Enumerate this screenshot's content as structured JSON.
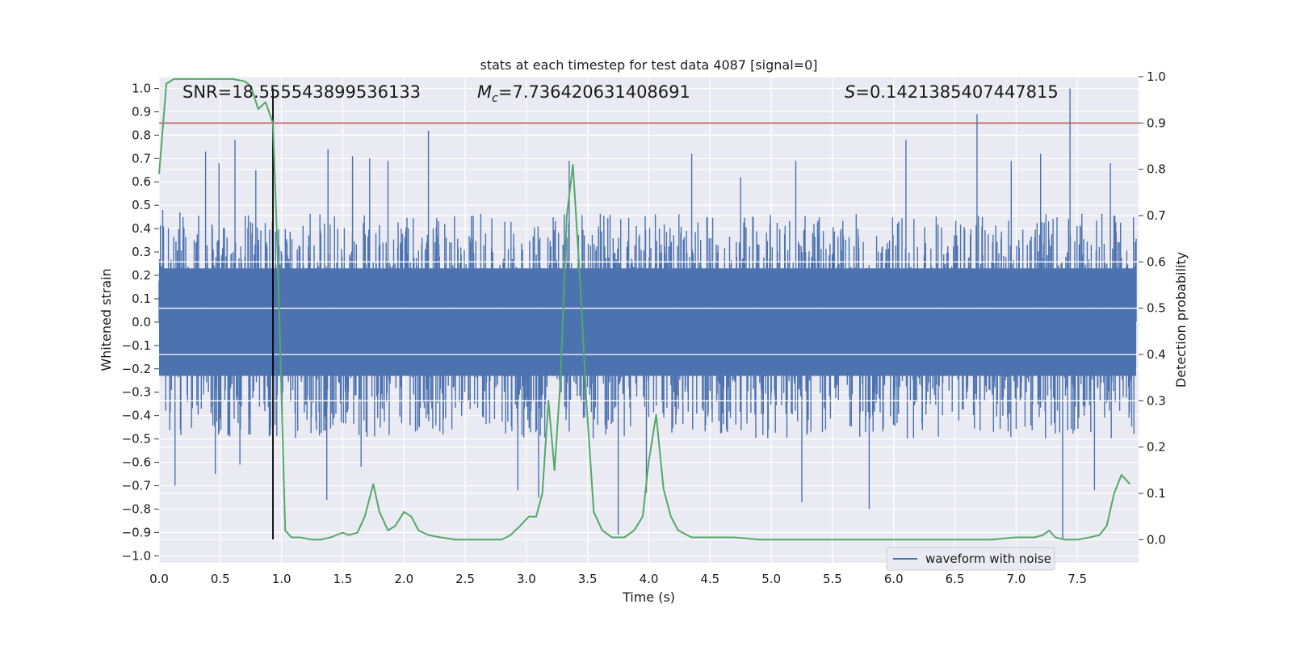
{
  "chart_data": {
    "type": "line",
    "title": "stats at each timestep for test data 4087 [signal=0]",
    "xlabel": "Time (s)",
    "ylabel": "Whitened strain",
    "y2label": "Detection probability",
    "xlim": [
      0.0,
      8.0
    ],
    "ylim": [
      -1.03,
      1.05
    ],
    "y2lim": [
      -0.05,
      1.0
    ],
    "xticks": [
      "0.0",
      "0.5",
      "1.0",
      "1.5",
      "2.0",
      "2.5",
      "3.0",
      "3.5",
      "4.0",
      "4.5",
      "5.0",
      "5.5",
      "6.0",
      "6.5",
      "7.0",
      "7.5"
    ],
    "yticks": [
      "1.0",
      "0.9",
      "0.8",
      "0.7",
      "0.6",
      "0.5",
      "0.4",
      "0.3",
      "0.2",
      "0.1",
      "0.0",
      "-0.1",
      "-0.2",
      "-0.3",
      "-0.4",
      "-0.5",
      "-0.6",
      "-0.7",
      "-0.8",
      "-0.9",
      "-1.0"
    ],
    "y2ticks": [
      "1.0",
      "0.9",
      "0.8",
      "0.7",
      "0.6",
      "0.5",
      "0.4",
      "0.3",
      "0.2",
      "0.1",
      "0.0"
    ],
    "annotations": {
      "snr": "SNR=18.555543899536133",
      "mc_symbol": "M",
      "mc_subscript": "c",
      "mc_value": "=7.736420631408691",
      "s_symbol": "S",
      "s_value": "=0.1421385407447815"
    },
    "legend": {
      "label": "waveform with noise",
      "location": "lower right"
    },
    "threshold_line": {
      "axis": "y2",
      "value": 0.9,
      "color": "#c44e52"
    },
    "marker_line": {
      "x": 0.93,
      "y_range": [
        -0.93,
        1.0
      ],
      "color": "#000000"
    },
    "waveform": {
      "name": "waveform with noise",
      "color": "#4c72b0",
      "x_range": [
        0.0,
        7.98
      ],
      "core_band": [
        -0.13,
        0.13
      ],
      "upper_envelope_typical": 0.42,
      "lower_envelope_typical": -0.45,
      "peaks": [
        {
          "x": 0.03,
          "y": 0.48
        },
        {
          "x": 0.17,
          "y": 0.47
        },
        {
          "x": 0.38,
          "y": 0.73
        },
        {
          "x": 0.49,
          "y": 0.68
        },
        {
          "x": 0.62,
          "y": 0.78
        },
        {
          "x": 0.79,
          "y": 0.65
        },
        {
          "x": 1.38,
          "y": 0.74
        },
        {
          "x": 1.58,
          "y": 0.71
        },
        {
          "x": 1.72,
          "y": 0.7
        },
        {
          "x": 1.87,
          "y": 0.69
        },
        {
          "x": 2.2,
          "y": 0.82
        },
        {
          "x": 3.35,
          "y": 0.69
        },
        {
          "x": 4.35,
          "y": 0.72
        },
        {
          "x": 4.75,
          "y": 0.62
        },
        {
          "x": 5.2,
          "y": 0.69
        },
        {
          "x": 6.1,
          "y": 0.78
        },
        {
          "x": 6.68,
          "y": 0.89
        },
        {
          "x": 6.96,
          "y": 0.69
        },
        {
          "x": 7.2,
          "y": 0.72
        },
        {
          "x": 7.44,
          "y": 1.0
        },
        {
          "x": 7.77,
          "y": 0.68
        }
      ],
      "troughs": [
        {
          "x": 0.13,
          "y": -0.7
        },
        {
          "x": 0.46,
          "y": -0.65
        },
        {
          "x": 0.66,
          "y": -0.61
        },
        {
          "x": 1.37,
          "y": -0.76
        },
        {
          "x": 1.65,
          "y": -0.62
        },
        {
          "x": 2.93,
          "y": -0.72
        },
        {
          "x": 3.1,
          "y": -0.75
        },
        {
          "x": 3.75,
          "y": -0.91
        },
        {
          "x": 3.98,
          "y": -0.73
        },
        {
          "x": 5.25,
          "y": -0.77
        },
        {
          "x": 5.8,
          "y": -0.8
        },
        {
          "x": 7.38,
          "y": -0.93
        },
        {
          "x": 7.64,
          "y": -0.72
        }
      ]
    },
    "series": [
      {
        "name": "detection probability",
        "axis": "y2",
        "color": "#55a868",
        "x": [
          0.0,
          0.06,
          0.12,
          0.2,
          0.3,
          0.45,
          0.6,
          0.7,
          0.75,
          0.81,
          0.87,
          0.93,
          0.97,
          1.03,
          1.08,
          1.15,
          1.25,
          1.32,
          1.4,
          1.45,
          1.5,
          1.55,
          1.62,
          1.68,
          1.75,
          1.8,
          1.87,
          1.93,
          2.0,
          2.06,
          2.12,
          2.2,
          2.3,
          2.42,
          2.6,
          2.8,
          2.87,
          2.95,
          3.02,
          3.08,
          3.13,
          3.18,
          3.23,
          3.28,
          3.33,
          3.38,
          3.44,
          3.49,
          3.55,
          3.62,
          3.7,
          3.8,
          3.88,
          3.95,
          4.0,
          4.06,
          4.12,
          4.18,
          4.24,
          4.35,
          4.5,
          4.7,
          4.9,
          5.2,
          5.6,
          6.0,
          6.4,
          6.8,
          7.0,
          7.08,
          7.15,
          7.22,
          7.27,
          7.32,
          7.4,
          7.5,
          7.6,
          7.68,
          7.74,
          7.8,
          7.86,
          7.93
        ],
        "values": [
          0.79,
          0.985,
          0.995,
          0.995,
          0.995,
          0.995,
          0.995,
          0.99,
          0.98,
          0.93,
          0.945,
          0.9,
          0.6,
          0.02,
          0.005,
          0.005,
          0.0,
          0.0,
          0.005,
          0.01,
          0.015,
          0.01,
          0.015,
          0.05,
          0.12,
          0.06,
          0.02,
          0.03,
          0.06,
          0.05,
          0.02,
          0.01,
          0.005,
          0.0,
          0.0,
          0.0,
          0.01,
          0.03,
          0.05,
          0.05,
          0.1,
          0.3,
          0.15,
          0.35,
          0.7,
          0.81,
          0.55,
          0.3,
          0.06,
          0.02,
          0.005,
          0.005,
          0.02,
          0.05,
          0.17,
          0.27,
          0.11,
          0.05,
          0.02,
          0.005,
          0.005,
          0.005,
          0.0,
          0.0,
          0.0,
          0.0,
          0.0,
          0.0,
          0.005,
          0.005,
          0.005,
          0.01,
          0.02,
          0.005,
          0.0,
          0.0,
          0.005,
          0.01,
          0.03,
          0.1,
          0.14,
          0.12
        ]
      }
    ]
  }
}
